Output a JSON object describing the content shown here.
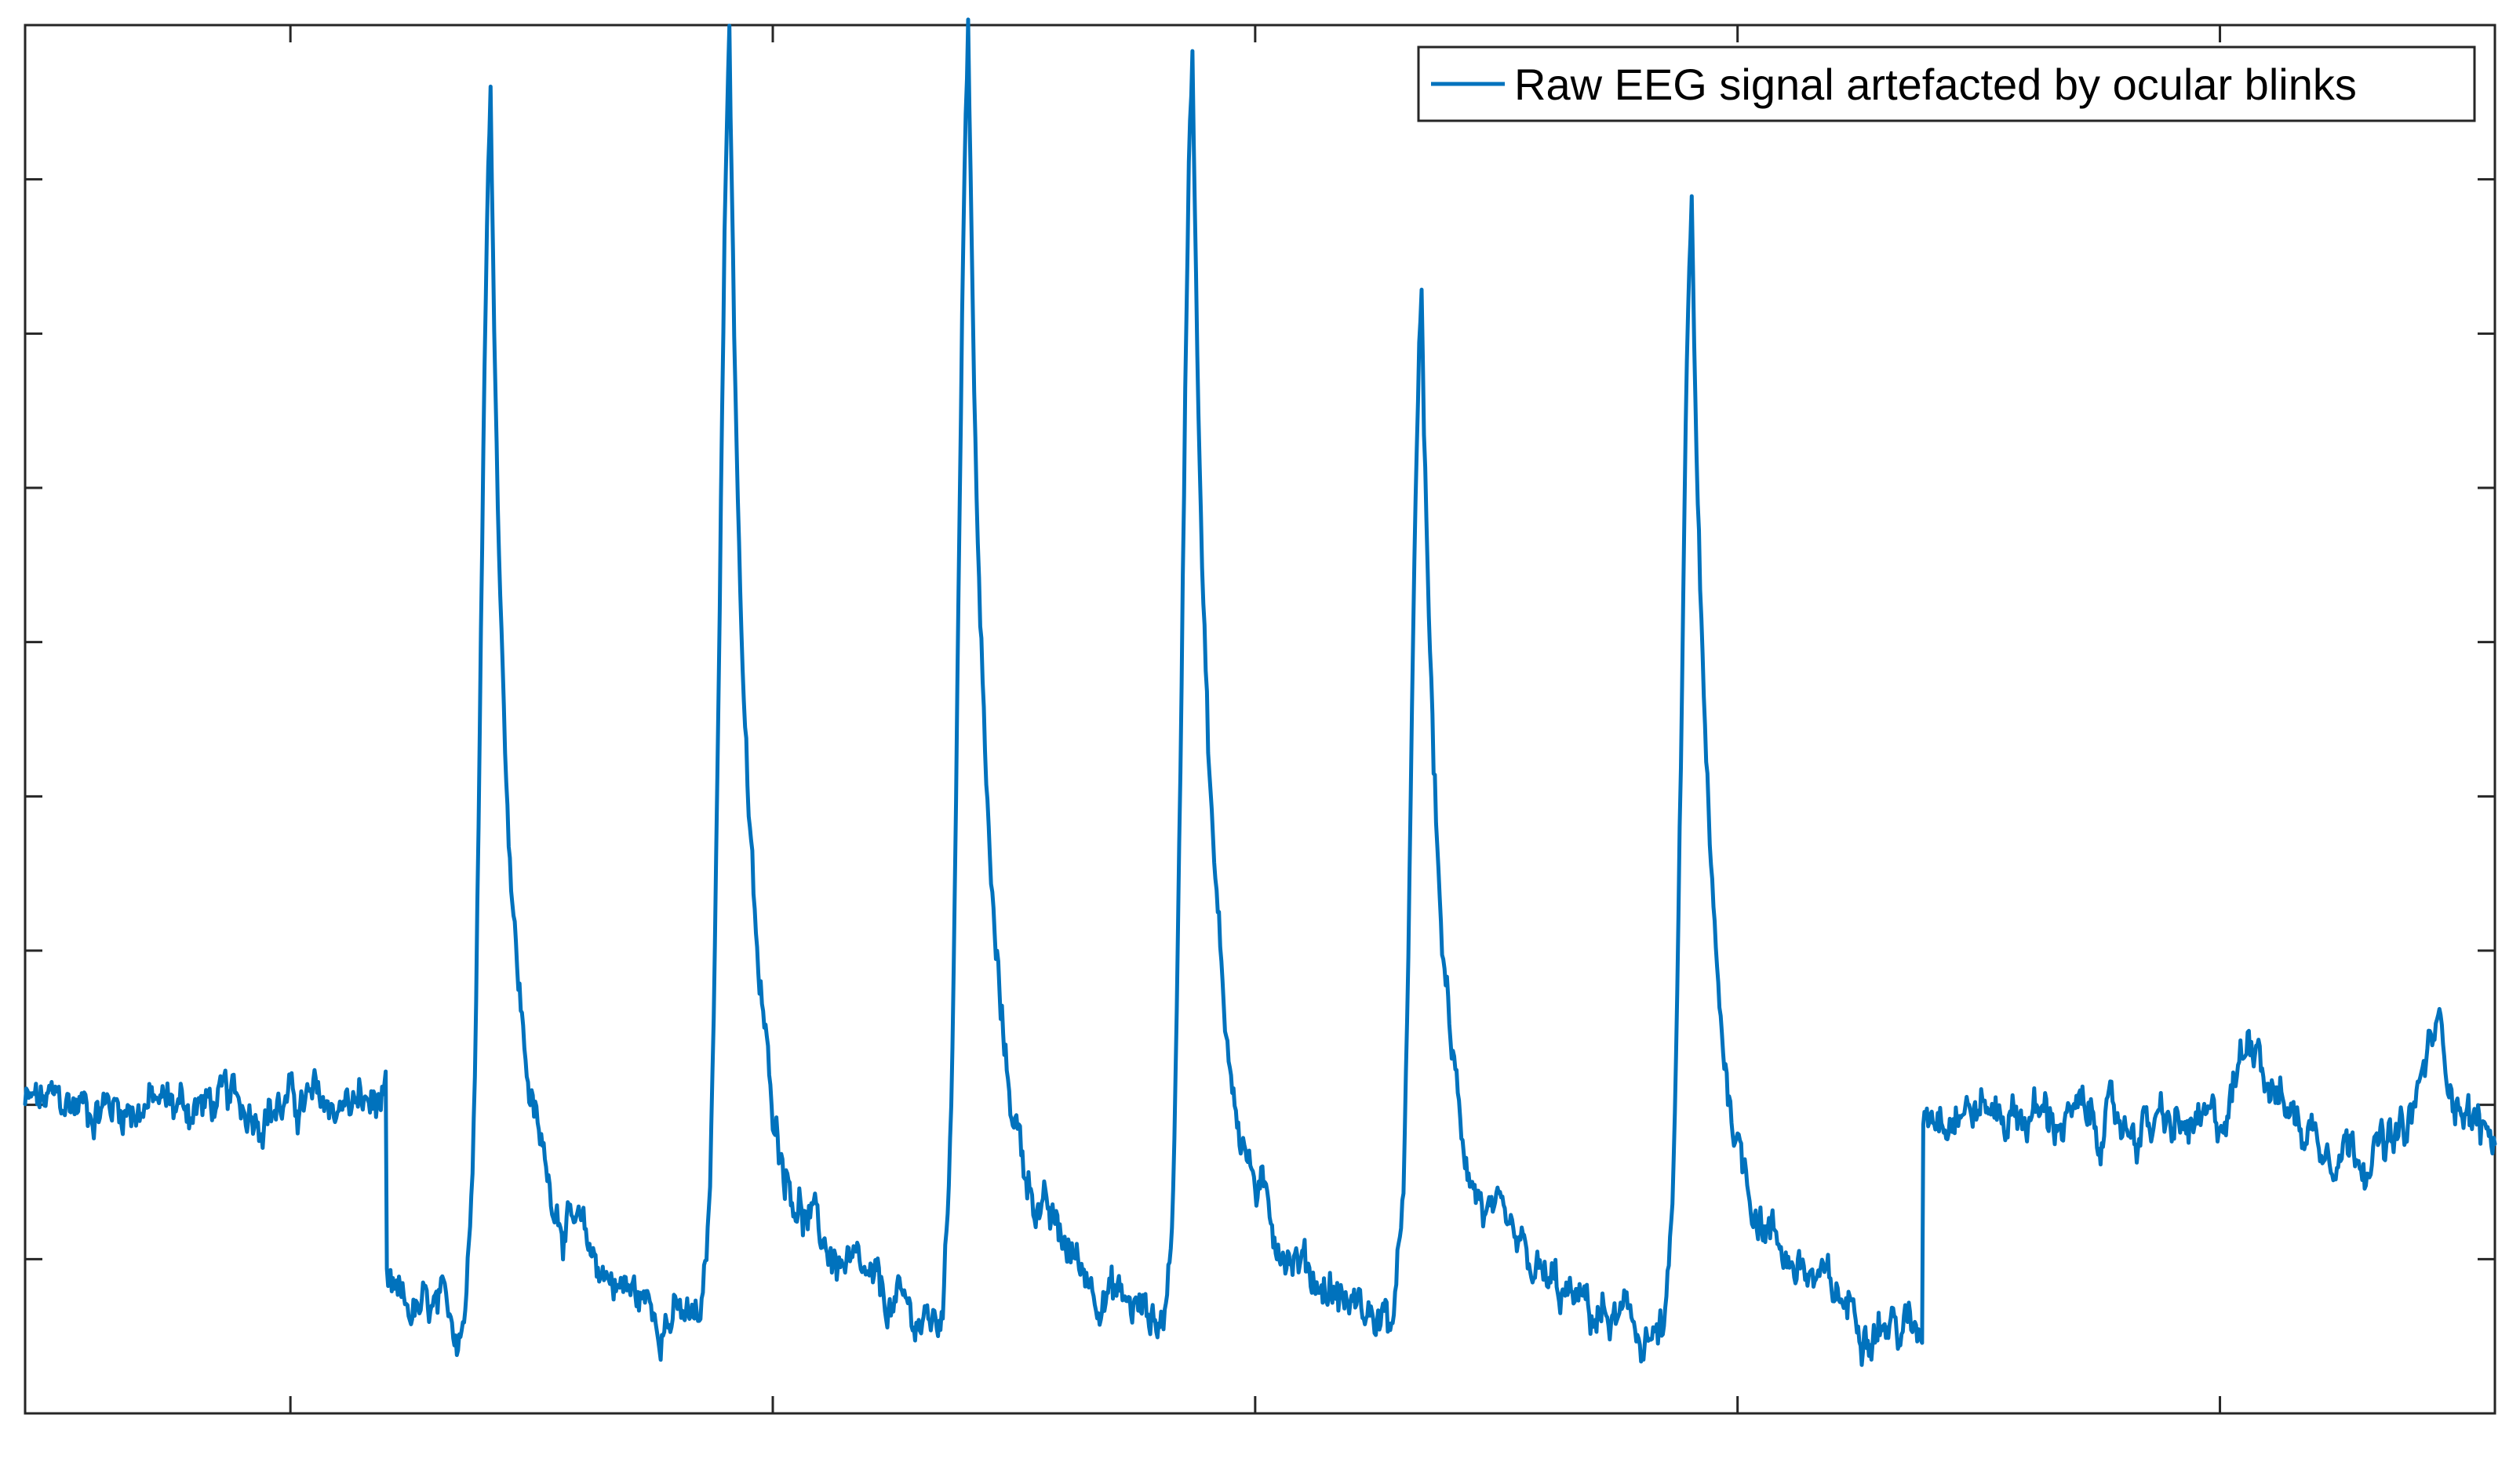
{
  "chart_data": {
    "type": "line",
    "title": "",
    "xlabel": "",
    "ylabel": "",
    "xlim": [
      0,
      1024
    ],
    "ylim": [
      0,
      9
    ],
    "xticks": [
      110,
      310,
      510,
      710,
      910
    ],
    "yticks": [
      0,
      1,
      2,
      3,
      4,
      5,
      6,
      7,
      8
    ],
    "tick_labels_shown": false,
    "grid": false,
    "legend_position": "top-right",
    "series": [
      {
        "name": "Raw EEG signal artefacted by ocular blinks",
        "color": "#0072BD",
        "baseline_segments": [
          {
            "x": [
              0,
              150
            ],
            "y": 2.0
          },
          {
            "x": [
              150,
              787
            ],
            "y": 0.7
          },
          {
            "x": [
              787,
              1005
            ],
            "y": 2.0
          },
          {
            "x": [
              1005,
              1024
            ],
            "y": 1.7
          }
        ],
        "events": [
          {
            "type": "blink",
            "peak_x": 193,
            "peak": 8.5
          },
          {
            "type": "blink",
            "peak_x": 292,
            "peak": 8.95
          },
          {
            "type": "blink",
            "peak_x": 391,
            "peak": 8.95
          },
          {
            "type": "blink",
            "peak_x": 484,
            "peak": 8.9
          },
          {
            "type": "blink",
            "peak_x": 579,
            "peak": 7.2
          },
          {
            "type": "blink",
            "peak_x": 691,
            "peak": 7.9
          },
          {
            "type": "bump",
            "peak_x": 925,
            "peak": 2.8
          },
          {
            "type": "bump",
            "peak_x": 1001,
            "peak": 2.9
          }
        ]
      }
    ]
  }
}
